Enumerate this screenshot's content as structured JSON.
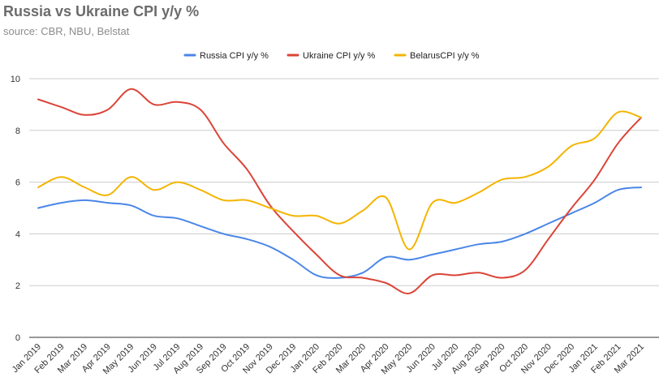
{
  "chart_data": {
    "type": "line",
    "title": "Russia vs Ukraine CPI y/y %",
    "subtitle": "source: CBR, NBU, Belstat",
    "xlabel": "",
    "ylabel": "",
    "ylim": [
      0,
      10
    ],
    "yticks": [
      "0",
      "2",
      "4",
      "6",
      "8",
      "10"
    ],
    "grid": true,
    "legend_position": "top-center",
    "categories": [
      "Jan 2019",
      "Feb 2019",
      "Mar 2019",
      "Apr 2019",
      "May 2019",
      "Jun 2019",
      "Jul 2019",
      "Aug 2019",
      "Sep 2019",
      "Oct 2019",
      "Nov 2019",
      "Dec 2019",
      "Jan 2020",
      "Feb 2020",
      "Mar 2020",
      "Apr 2020",
      "May 2020",
      "Jun 2020",
      "Jul 2020",
      "Aug 2020",
      "Sep 2020",
      "Oct 2020",
      "Nov 2020",
      "Dec 2020",
      "Jan 2021",
      "Feb 2021",
      "Mar 2021"
    ],
    "series": [
      {
        "name": "Russia CPI y/y %",
        "color": "#4a86e8",
        "values": [
          5.0,
          5.2,
          5.3,
          5.2,
          5.1,
          4.7,
          4.6,
          4.3,
          4.0,
          3.8,
          3.5,
          3.0,
          2.4,
          2.3,
          2.5,
          3.1,
          3.0,
          3.2,
          3.4,
          3.6,
          3.7,
          4.0,
          4.4,
          4.8,
          5.2,
          5.7,
          5.8
        ]
      },
      {
        "name": "Ukraine CPI y/y %",
        "color": "#db4437",
        "values": [
          9.2,
          8.9,
          8.6,
          8.8,
          9.6,
          9.0,
          9.1,
          8.8,
          7.5,
          6.5,
          5.1,
          4.1,
          3.2,
          2.4,
          2.3,
          2.1,
          1.7,
          2.4,
          2.4,
          2.5,
          2.3,
          2.6,
          3.8,
          5.0,
          6.1,
          7.5,
          8.5
        ]
      },
      {
        "name": "BelarusCPI y/y %",
        "color": "#f4b400",
        "values": [
          5.8,
          6.2,
          5.8,
          5.5,
          6.2,
          5.7,
          6.0,
          5.7,
          5.3,
          5.3,
          5.0,
          4.7,
          4.7,
          4.4,
          4.9,
          5.4,
          3.4,
          5.2,
          5.2,
          5.6,
          6.1,
          6.2,
          6.6,
          7.4,
          7.7,
          8.7,
          8.5
        ]
      }
    ]
  }
}
